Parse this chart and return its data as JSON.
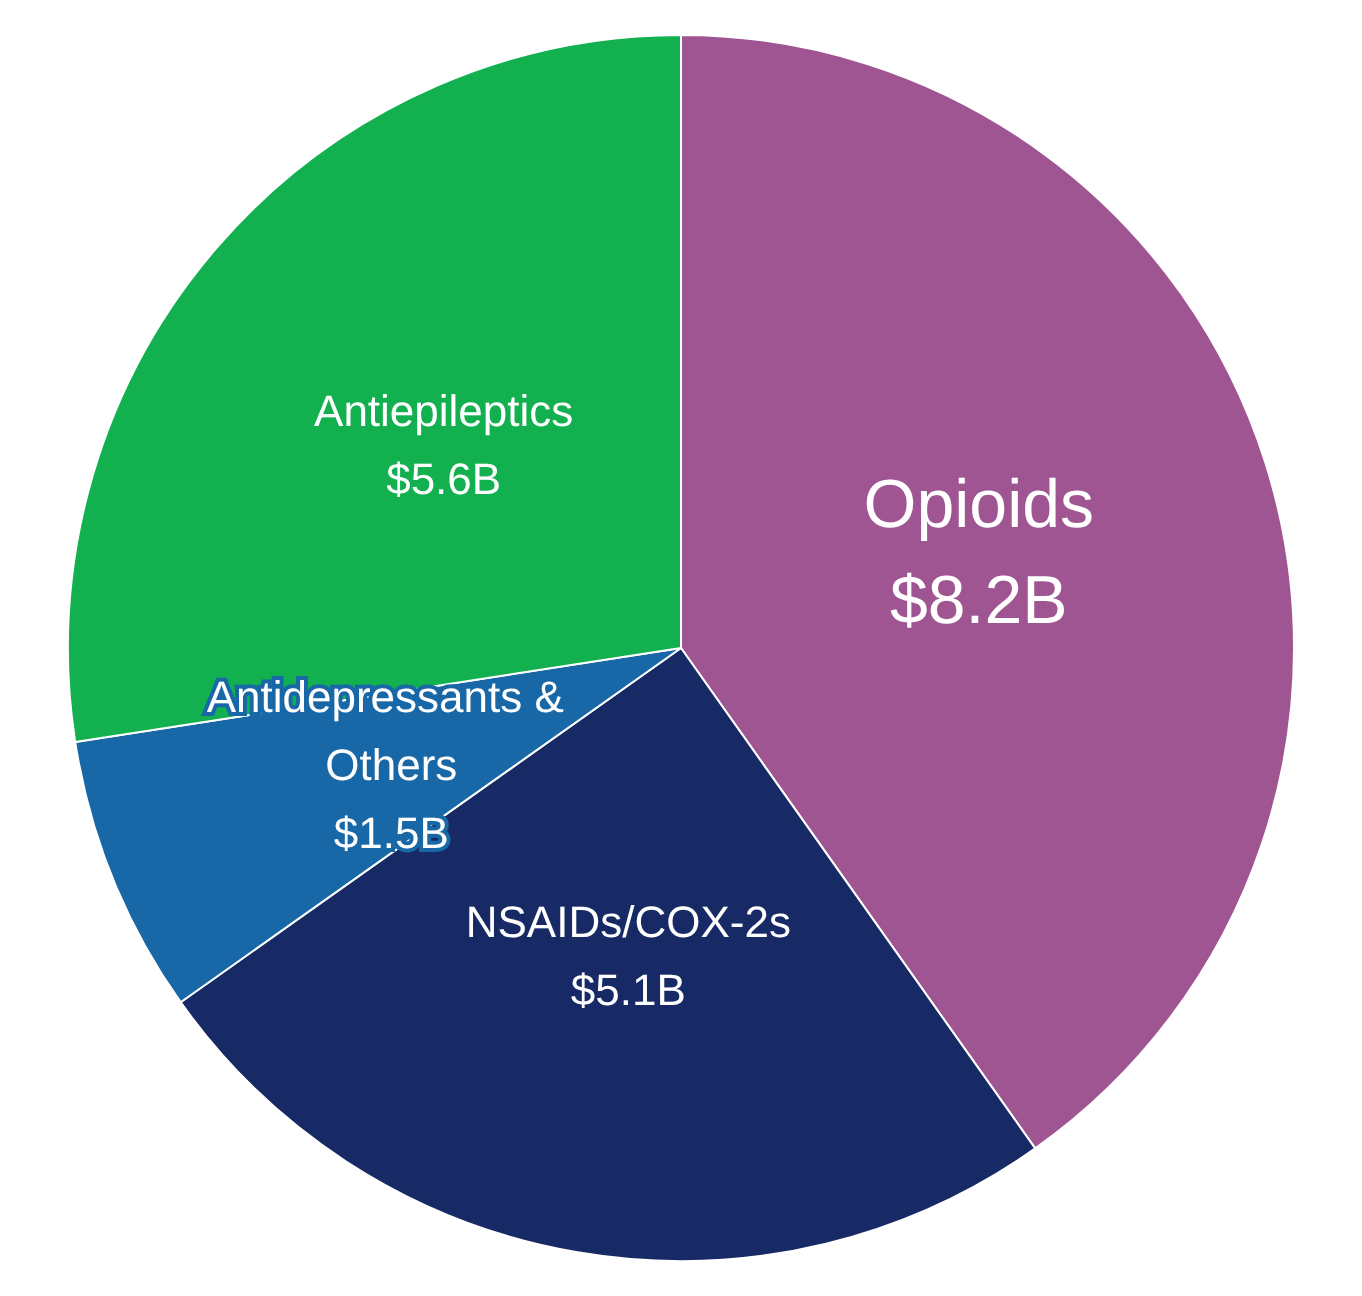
{
  "chart_data": {
    "type": "pie",
    "categories": [
      "Opioids",
      "NSAIDs/COX-2s",
      "Antidepressants & Others",
      "Antiepileptics"
    ],
    "values": [
      8.2,
      5.1,
      1.5,
      5.6
    ],
    "value_labels": [
      "$8.2B",
      "$5.1B",
      "$1.5B",
      "$5.6B"
    ],
    "colors": [
      "#a05593",
      "#172a66",
      "#1868a8",
      "#12b04f"
    ],
    "legend": false
  }
}
